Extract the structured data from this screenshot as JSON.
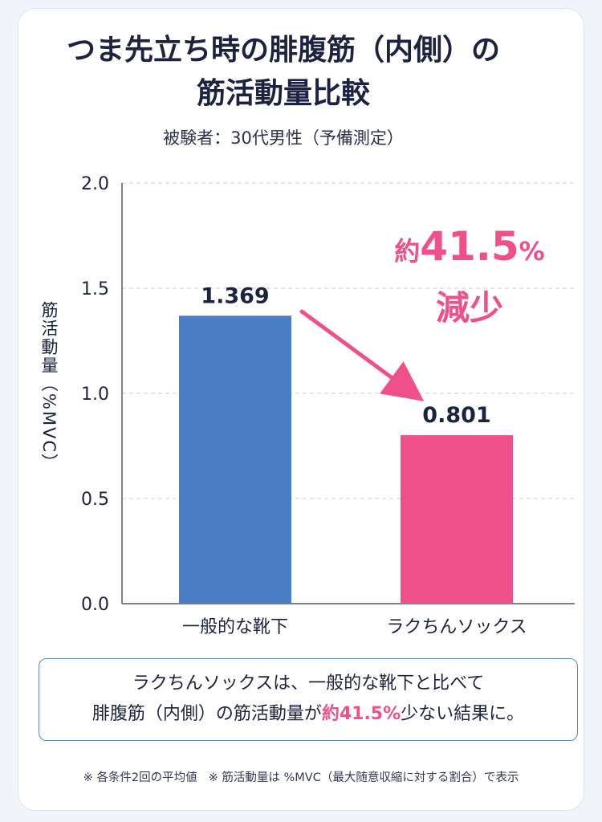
{
  "title_line1": "つま先立ち時の腓腹筋（内側）の",
  "title_line2": "筋活動量比較",
  "subtitle": "被験者：30代男性（予備測定）",
  "chart_data": {
    "type": "bar",
    "title": "つま先立ち時の腓腹筋（内側）の筋活動量比較",
    "ylabel": "筋活動量（%MVC）",
    "xlabel": "",
    "categories": [
      "一般的な靴下",
      "ラクちんソックス"
    ],
    "values": [
      1.369,
      0.801
    ],
    "value_labels": [
      "1.369",
      "0.801"
    ],
    "ylim": [
      0,
      2.0
    ],
    "yticks": [
      "0.0",
      "0.5",
      "1.0",
      "1.5",
      "2.0"
    ],
    "ytick_values": [
      0,
      0.5,
      1.0,
      1.5,
      2.0
    ],
    "bar_colors": [
      "#4a7ec4",
      "#f0508a"
    ],
    "grid": "horizontal dashed",
    "annotation": {
      "prefix": "約",
      "number": "41.5",
      "suffix": "%",
      "word": "減少",
      "color": "#f0508a"
    }
  },
  "summary": {
    "line1": "ラクちんソックスは、一般的な靴下と比べて",
    "line2_pre": "腓腹筋（内側）の筋活動量が",
    "line2_hl": "約41.5%",
    "line2_post": "少ない結果に。"
  },
  "footnote": {
    "part1": "※ 各条件2回の平均値",
    "part2": "※ 筋活動量は %MVC（最大随意収縮に対する割合）で表示"
  }
}
